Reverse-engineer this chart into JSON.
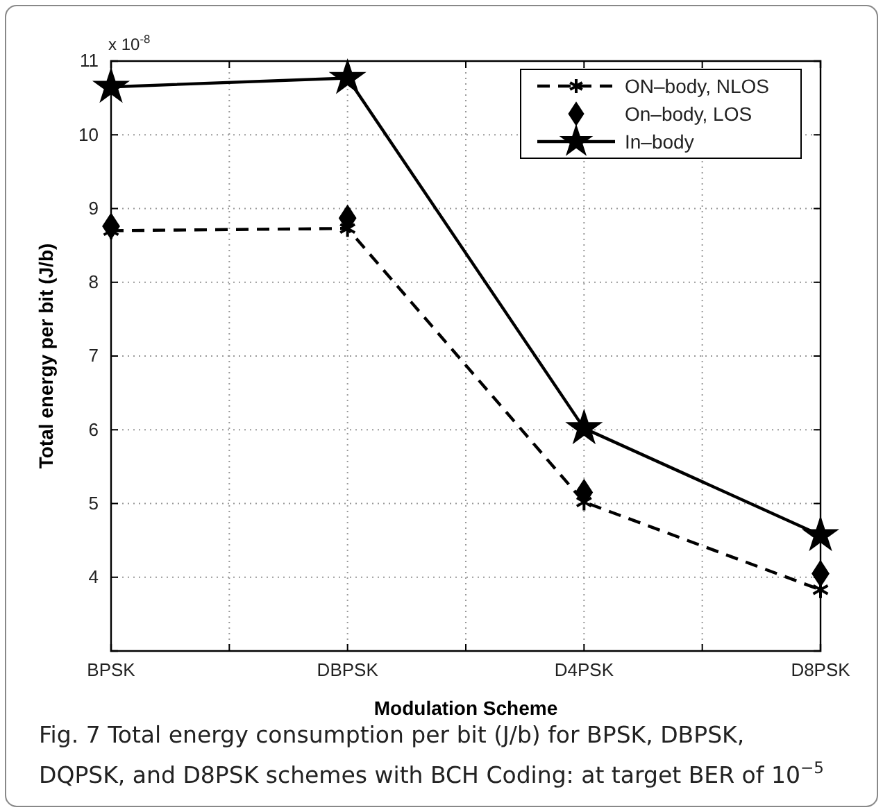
{
  "chart_data": {
    "type": "line",
    "xlabel": "Modulation Scheme",
    "ylabel": "Total energy per bit (J/b)",
    "categories": [
      "BPSK",
      "DBPSK",
      "D4PSK",
      "D8PSK"
    ],
    "ylim": [
      3,
      11
    ],
    "yticks": [
      {
        "value": 3,
        "label": null
      },
      4,
      5,
      6,
      7,
      8,
      9,
      10,
      11
    ],
    "grid": true,
    "legend": "top right",
    "series": [
      {
        "name": "ON–body, NLOS",
        "color": "#000000",
        "marker": "cross",
        "line_style": "dashed",
        "values": [
          8.7,
          8.73,
          5.02,
          3.83
        ]
      },
      {
        "name": "On–body, LOS",
        "color": "#000000",
        "type": "scatter",
        "marker": "diamond",
        "values": [
          8.76,
          8.87,
          5.15,
          4.05
        ]
      },
      {
        "name": "In–body",
        "color": "#000000",
        "marker": "star",
        "line_style": "solid",
        "values": [
          10.65,
          10.77,
          6.02,
          4.57
        ]
      }
    ],
    "annotations": [
      "x 10$^{-8}$",
      "Fig. 7 Total energy consumption per bit (J/b) for BPSK, DBPSK, DQPSK, and D8PSK schemes with BCH Coding: at target BER of 10$^{−5}$"
    ]
  }
}
